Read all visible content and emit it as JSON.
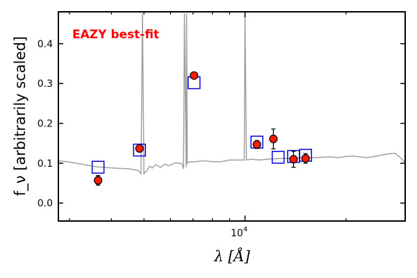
{
  "chart_data": {
    "type": "scatter",
    "title": "",
    "annotation": "EAZY best-fit",
    "annotation_color": "#ff0000",
    "xlabel": "λ [Å]",
    "ylabel": "f_ν [arbitrarily scaled]",
    "xscale": "log",
    "xlim": [
      2780,
      30000
    ],
    "ylim": [
      -0.045,
      0.48
    ],
    "yticks": [
      0.0,
      0.1,
      0.2,
      0.3,
      0.4
    ],
    "ytick_labels": [
      "0.0",
      "0.1",
      "0.2",
      "0.3",
      "0.4"
    ],
    "xtick_major": {
      "value": 10000,
      "label_base": "10",
      "label_exp": "4"
    },
    "xtick_minor": [
      3000,
      4000,
      5000,
      6000,
      7000,
      8000,
      9000,
      20000
    ],
    "grid": false,
    "legend": "none",
    "colors": {
      "model": "#a0a0a0",
      "observed_fill": "#ff1a00",
      "observed_edge": "#000000",
      "synthetic_edge": "#0000dd",
      "errorbar": "#000000"
    },
    "series": [
      {
        "role": "model-spectrum",
        "style": "line",
        "x": [
          2780,
          3000,
          3300,
          3600,
          3900,
          4200,
          4500,
          4800,
          4900,
          4950,
          5000,
          5050,
          5100,
          5200,
          5300,
          5400,
          5500,
          5600,
          5700,
          5800,
          5900,
          6000,
          6200,
          6400,
          6500,
          6560,
          6600,
          6680,
          6700,
          6730,
          6800,
          6900,
          7000,
          7500,
          8000,
          8500,
          9000,
          9500,
          9950,
          10000,
          10100,
          10500,
          11000,
          12000,
          13000,
          14000,
          15000,
          16000,
          17000,
          18000,
          19000,
          20000,
          21000,
          22000,
          23000,
          24000,
          25000,
          26000,
          27000,
          28000,
          29000,
          30000
        ],
        "y": [
          0.106,
          0.103,
          0.097,
          0.091,
          0.089,
          0.087,
          0.086,
          0.082,
          0.074,
          0.476,
          0.074,
          0.078,
          0.081,
          0.093,
          0.088,
          0.096,
          0.094,
          0.089,
          0.095,
          0.098,
          0.093,
          0.096,
          0.101,
          0.1,
          0.098,
          0.086,
          0.476,
          0.09,
          0.476,
          0.1,
          0.103,
          0.104,
          0.103,
          0.106,
          0.104,
          0.104,
          0.108,
          0.108,
          0.108,
          0.476,
          0.108,
          0.11,
          0.108,
          0.111,
          0.112,
          0.113,
          0.114,
          0.114,
          0.115,
          0.116,
          0.114,
          0.117,
          0.118,
          0.116,
          0.114,
          0.116,
          0.119,
          0.122,
          0.124,
          0.125,
          0.114,
          0.102
        ]
      },
      {
        "role": "synthetic-photometry",
        "style": "square",
        "x": [
          3650,
          4850,
          7050,
          10850,
          12550,
          13950,
          15150
        ],
        "y": [
          0.09,
          0.133,
          0.302,
          0.153,
          0.115,
          0.117,
          0.12
        ]
      },
      {
        "role": "observed-photometry",
        "style": "circle-errorbar",
        "x": [
          3650,
          4850,
          7050,
          10850,
          12150,
          13950,
          15150
        ],
        "y": [
          0.057,
          0.137,
          0.32,
          0.147,
          0.161,
          0.11,
          0.112
        ],
        "yerr": [
          0.012,
          0.005,
          0.007,
          0.01,
          0.025,
          0.02,
          0.012
        ]
      }
    ]
  }
}
